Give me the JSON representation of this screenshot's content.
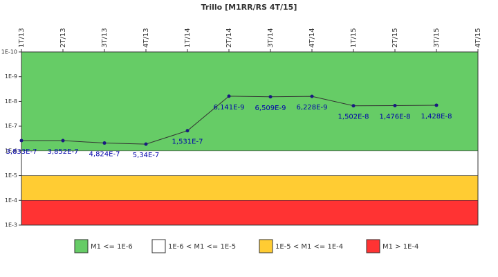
{
  "chart_data": {
    "type": "line",
    "title": "Trillo [M1RR/RS 4T/15]",
    "categories": [
      "1T/13",
      "2T/13",
      "3T/13",
      "4T/13",
      "1T/14",
      "2T/14",
      "3T/14",
      "4T/14",
      "1T/15",
      "2T/15",
      "3T/15",
      "4T/15"
    ],
    "values": [
      3.833e-07,
      3.852e-07,
      4.824e-07,
      5.34e-07,
      1.531e-07,
      6.141e-09,
      6.509e-09,
      6.228e-09,
      1.502e-08,
      1.476e-08,
      1.428e-08,
      null
    ],
    "value_labels": [
      "3,833E-7",
      "3,852E-7",
      "4,824E-7",
      "5,34E-7",
      "1,531E-7",
      "6,141E-9",
      "6,509E-9",
      "6,228E-9",
      "1,502E-8",
      "1,476E-8",
      "1,428E-8",
      null
    ],
    "color": "#333333",
    "marker_color": "#1a1a80",
    "label_color": "#0000aa",
    "log_scale": true,
    "y_inverted": true,
    "ylim": [
      1e-10,
      0.001
    ],
    "yticks": [
      {
        "value": 1e-10,
        "label": "1E-10"
      },
      {
        "value": 1e-09,
        "label": "1E-9"
      },
      {
        "value": 1e-08,
        "label": "1E-8"
      },
      {
        "value": 1e-07,
        "label": "1E-7"
      },
      {
        "value": 1e-06,
        "label": "1E-6"
      },
      {
        "value": 1e-05,
        "label": "1E-5"
      },
      {
        "value": 0.0001,
        "label": "1E-4"
      },
      {
        "value": 0.001,
        "label": "1E-3"
      }
    ],
    "bands": [
      {
        "name": "M1 <= 1E-6",
        "color": "#66cc66",
        "from": 1e-10,
        "to": 1e-06
      },
      {
        "name": "1E-6 < M1 <= 1E-5",
        "color": "#ffffff",
        "from": 1e-06,
        "to": 1e-05
      },
      {
        "name": "1E-5 < M1 <= 1E-4",
        "color": "#ffcc33",
        "from": 1e-05,
        "to": 0.0001
      },
      {
        "name": "M1 > 1E-4",
        "color": "#ff3333",
        "from": 0.0001,
        "to": 0.001
      }
    ],
    "legend": "bottom"
  }
}
